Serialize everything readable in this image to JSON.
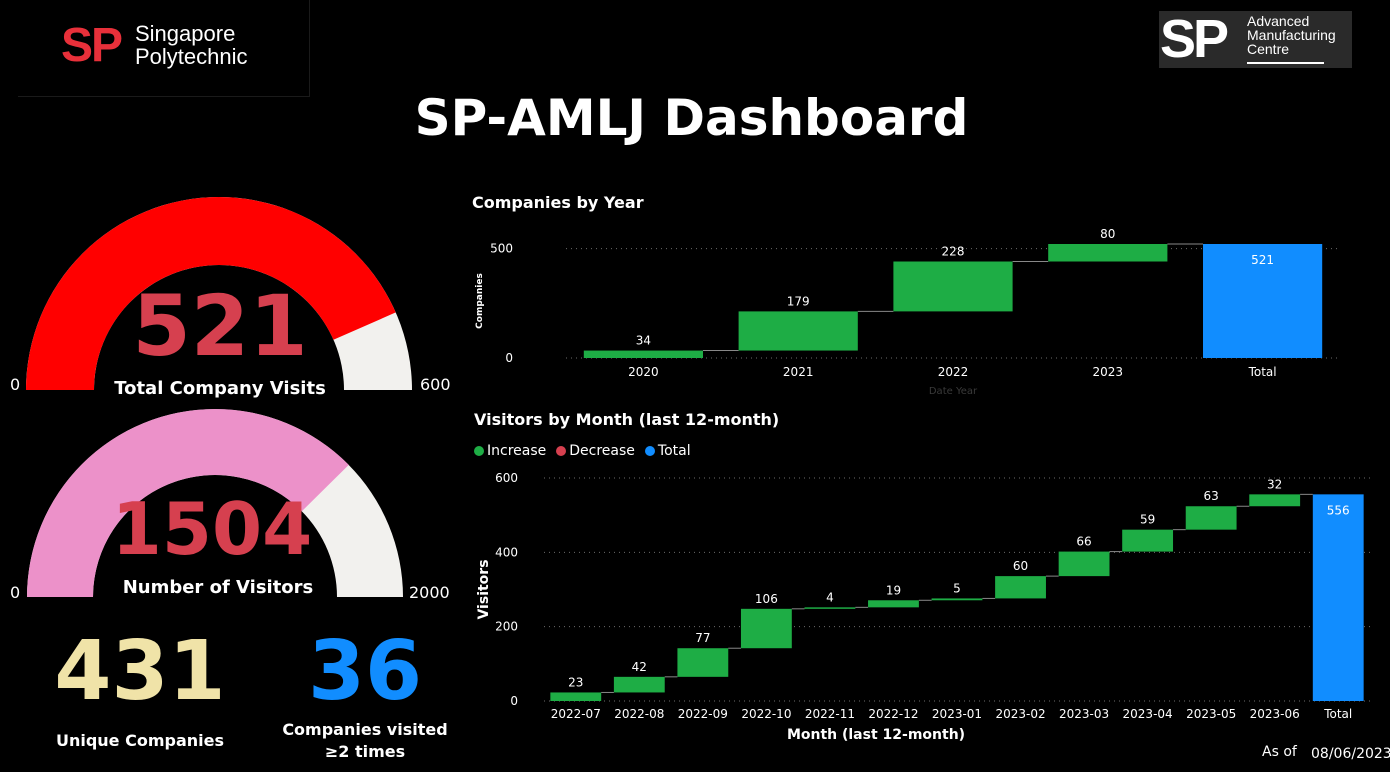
{
  "header": {
    "left_logo": {
      "mark": "SP",
      "name_line1": "Singapore",
      "name_line2": "Polytechnic"
    },
    "right_logo": {
      "mark": "SP",
      "name_line1": "Advanced",
      "name_line2": "Manufacturing",
      "name_line3": "Centre"
    },
    "title": "SP-AMLJ Dashboard"
  },
  "colors": {
    "increase": "#1ead45",
    "decrease": "#d6404f",
    "total": "#118dff",
    "gauge1_fill": "#ff0000",
    "gauge2_fill": "#ec91c9",
    "gauge_track": "#f2f1ee",
    "gauge_value_text": "#d6404f",
    "unique_companies": "#f0e3a8",
    "repeat_companies": "#118dff"
  },
  "gauges": [
    {
      "value": 521,
      "value_label": "521",
      "label": "Total  Company Visits",
      "min": 0,
      "max": 600,
      "min_label": "0",
      "max_label": "600"
    },
    {
      "value": 1504,
      "value_label": "1504",
      "label": "Number of Visitors",
      "min": 0,
      "max": 2000,
      "min_label": "0",
      "max_label": "2000"
    }
  ],
  "kpis": [
    {
      "value": "431",
      "label": "Unique Companies"
    },
    {
      "value": "36",
      "label_line1": "Companies visited",
      "label_line2": "≥2  times"
    }
  ],
  "chart_data": [
    {
      "type": "waterfall",
      "title": "Companies by Year",
      "xlabel": "Date Year",
      "ylabel": "Companies",
      "ylim": [
        0,
        521
      ],
      "yticks": [
        0,
        500
      ],
      "categories": [
        "2020",
        "2021",
        "2022",
        "2023",
        "Total"
      ],
      "values": [
        34,
        179,
        228,
        80,
        521
      ],
      "kinds": [
        "increase",
        "increase",
        "increase",
        "increase",
        "total"
      ],
      "grid": true
    },
    {
      "type": "waterfall",
      "title": "Visitors by Month (last 12-month)",
      "xlabel": "Month (last 12-month)",
      "ylabel": "Visitors",
      "ylim": [
        0,
        600
      ],
      "yticks": [
        0,
        200,
        400,
        600
      ],
      "categories": [
        "2022-07",
        "2022-08",
        "2022-09",
        "2022-10",
        "2022-11",
        "2022-12",
        "2023-01",
        "2023-02",
        "2023-03",
        "2023-04",
        "2023-05",
        "2023-06",
        "Total"
      ],
      "values": [
        23,
        42,
        77,
        106,
        4,
        19,
        5,
        60,
        66,
        59,
        63,
        32,
        556
      ],
      "kinds": [
        "increase",
        "increase",
        "increase",
        "increase",
        "increase",
        "increase",
        "increase",
        "increase",
        "increase",
        "increase",
        "increase",
        "increase",
        "total"
      ],
      "legend": [
        {
          "name": "Increase",
          "color": "#1ead45"
        },
        {
          "name": "Decrease",
          "color": "#d6404f"
        },
        {
          "name": "Total",
          "color": "#118dff"
        }
      ],
      "legend_position": "top-left",
      "grid": true
    }
  ],
  "footer": {
    "as_of_label": "As of",
    "as_of_date": "08/06/2023"
  }
}
